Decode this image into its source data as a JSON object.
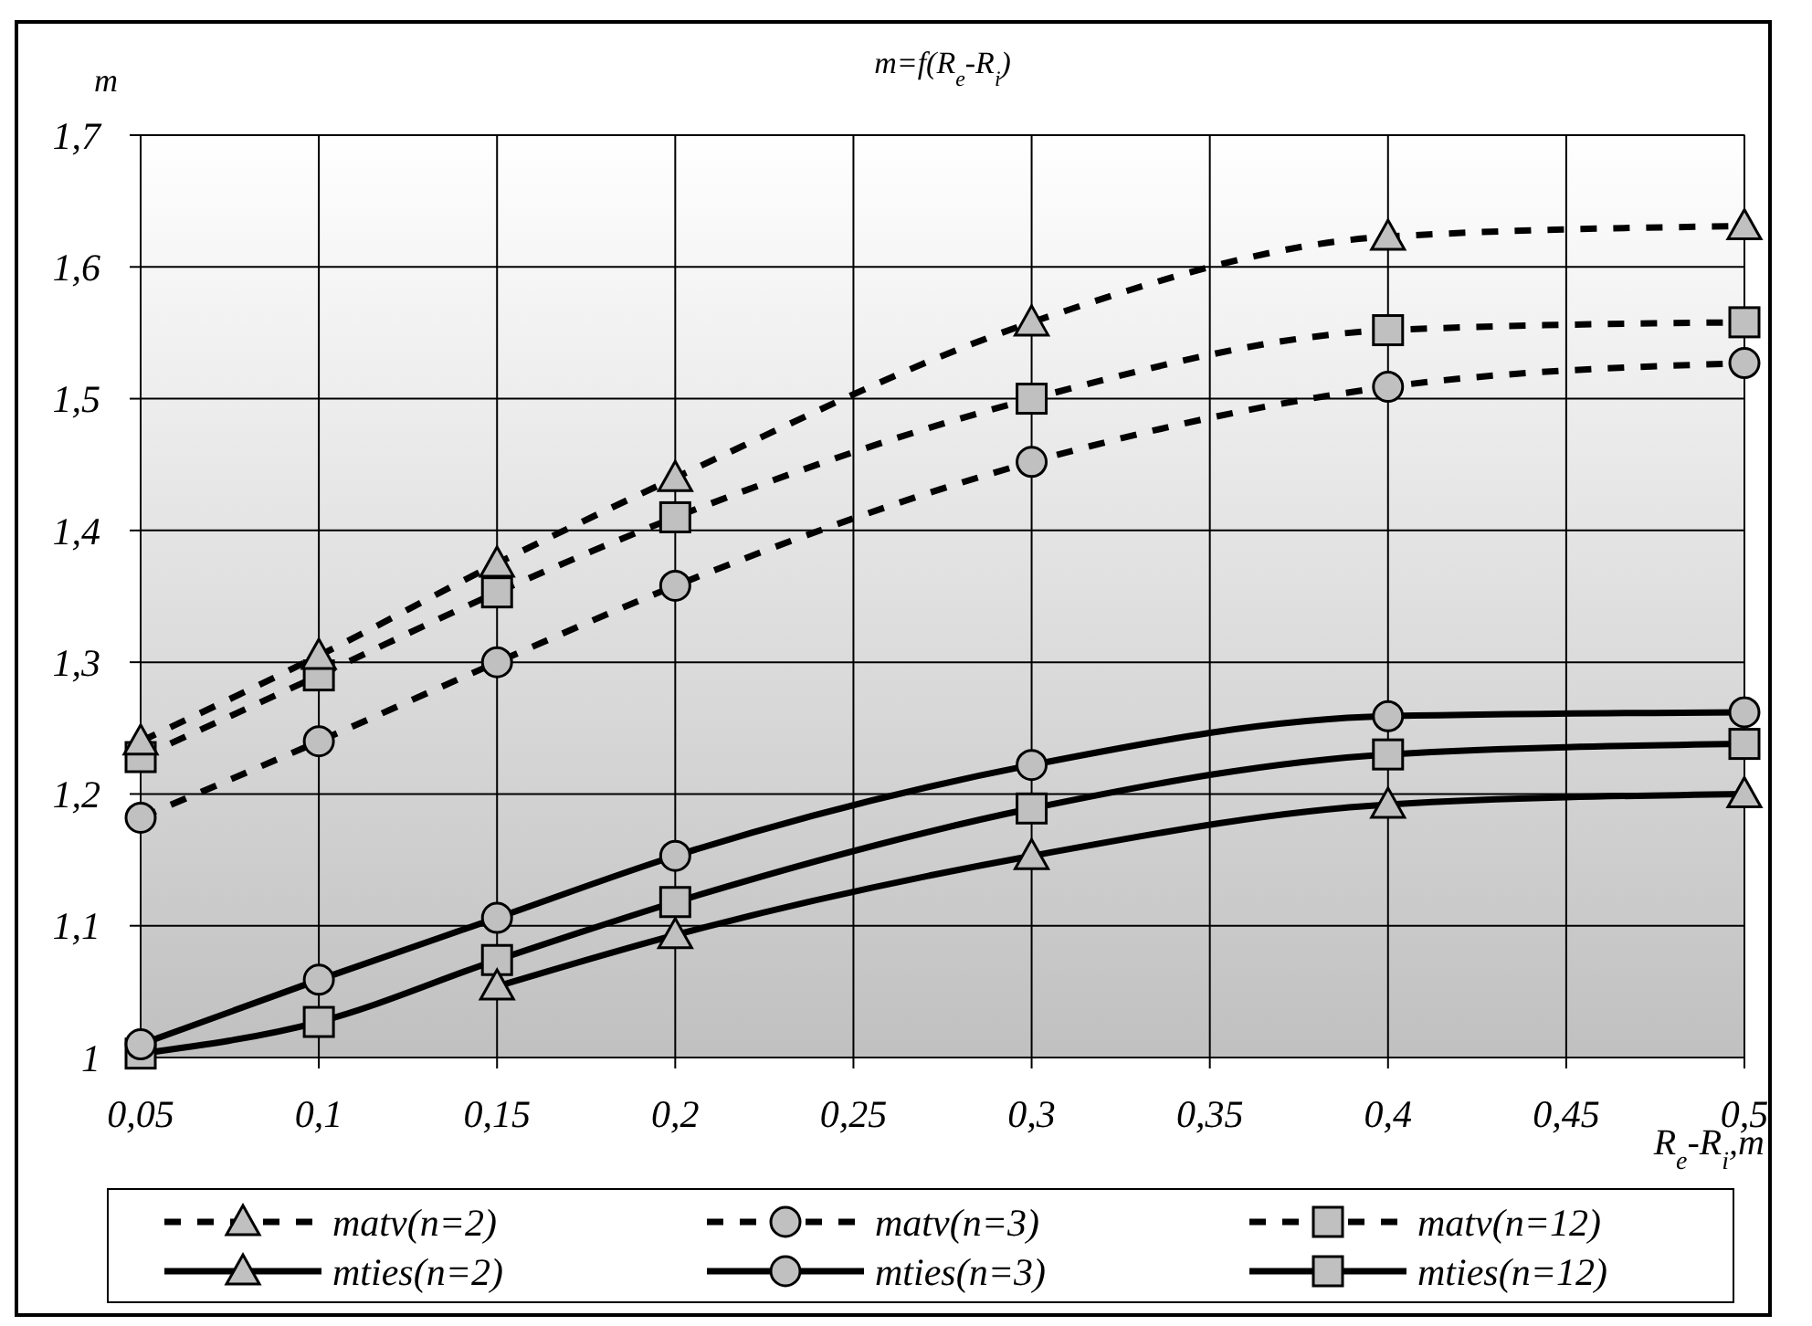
{
  "chart_data": {
    "type": "line",
    "title": "m=f(R$_{e}$-R$_{i}$)",
    "xlabel": "R$_{e}$-R$_{i}$,m",
    "ylabel": "m",
    "x": [
      0.05,
      0.1,
      0.15,
      0.2,
      0.3,
      0.4,
      0.5
    ],
    "xlim": [
      0.05,
      0.5
    ],
    "xticks": [
      {
        "value": 0.05,
        "label": "0,05"
      },
      {
        "value": 0.1,
        "label": "0,1"
      },
      {
        "value": 0.15,
        "label": "0,15"
      },
      {
        "value": 0.2,
        "label": "0,2"
      },
      {
        "value": 0.25,
        "label": "0,25"
      },
      {
        "value": 0.3,
        "label": "0,3"
      },
      {
        "value": 0.35,
        "label": "0,35"
      },
      {
        "value": 0.4,
        "label": "0,4"
      },
      {
        "value": 0.45,
        "label": "0,45"
      },
      {
        "value": 0.5,
        "label": "0,5"
      }
    ],
    "ylim": [
      1,
      1.7
    ],
    "yticks": [
      1,
      {
        "value": 1.1,
        "label": "1,1"
      },
      {
        "value": 1.2,
        "label": "1,2"
      },
      {
        "value": 1.3,
        "label": "1,3"
      },
      {
        "value": 1.4,
        "label": "1,4"
      },
      {
        "value": 1.5,
        "label": "1,5"
      },
      {
        "value": 1.6,
        "label": "1,6"
      },
      {
        "value": 1.7,
        "label": "1,7"
      }
    ],
    "grid": true,
    "legend": "bottom",
    "series": [
      {
        "name": "matv(n=2)",
        "color": "#000000",
        "marker": "triangle",
        "line_style": "dashed",
        "values": [
          1.24,
          1.305,
          1.375,
          1.44,
          1.558,
          1.623,
          1.631
        ]
      },
      {
        "name": "matv(n=3)",
        "color": "#000000",
        "marker": "circle",
        "line_style": "dashed",
        "values": [
          1.182,
          1.24,
          1.3,
          1.358,
          1.452,
          1.509,
          1.527
        ]
      },
      {
        "name": "matv(n=12)",
        "color": "#000000",
        "marker": "square",
        "line_style": "dashed",
        "values": [
          1.228,
          1.29,
          1.353,
          1.41,
          1.5,
          1.552,
          1.558
        ]
      },
      {
        "name": "mties(n=2)",
        "color": "#000000",
        "marker": "triangle",
        "line_style": "solid",
        "values": [
          null,
          null,
          1.054,
          1.093,
          1.153,
          1.192,
          1.2
        ]
      },
      {
        "name": "mties(n=3)",
        "color": "#000000",
        "marker": "circle",
        "line_style": "solid",
        "values": [
          1.01,
          1.059,
          1.106,
          1.153,
          1.222,
          1.259,
          1.262
        ]
      },
      {
        "name": "mties(n=12)",
        "color": "#000000",
        "marker": "square",
        "line_style": "solid",
        "values": [
          1.003,
          1.027,
          1.074,
          1.118,
          1.189,
          1.23,
          1.238
        ]
      }
    ]
  }
}
